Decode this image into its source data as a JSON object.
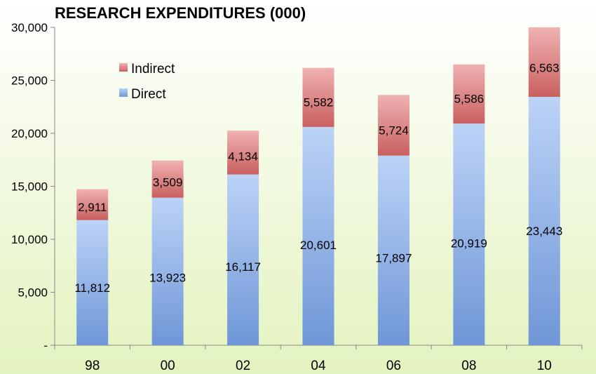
{
  "chart_data": {
    "type": "bar",
    "stacked": true,
    "title": "RESEARCH EXPENDITURES (000)",
    "xlabel": "",
    "ylabel": "",
    "categories": [
      "98",
      "00",
      "02",
      "04",
      "06",
      "08",
      "10"
    ],
    "series": [
      {
        "name": "Direct",
        "values": [
          11812,
          13923,
          16117,
          20601,
          17897,
          20919,
          23443
        ],
        "color_top": "#bcd3f7",
        "color_bottom": "#6f96d7"
      },
      {
        "name": "Indirect",
        "values": [
          2911,
          3509,
          4134,
          5582,
          5724,
          5586,
          6563
        ],
        "color_top": "#f0b2b2",
        "color_bottom": "#c96060"
      }
    ],
    "data_labels": {
      "Direct": [
        "11,812",
        "13,923",
        "16,117",
        "20,601",
        "17,897",
        "20,919",
        "23,443"
      ],
      "Indirect": [
        "2,911",
        "3,509",
        "4,134",
        "5,582",
        "5,724",
        "5,586",
        "6,563"
      ]
    },
    "ylim": [
      0,
      30000
    ],
    "yticks": [
      0,
      5000,
      10000,
      15000,
      20000,
      25000,
      30000
    ],
    "ytick_labels": [
      "-",
      "5,000",
      "10,000",
      "15,000",
      "20,000",
      "25,000",
      "30,000"
    ],
    "grid": false,
    "legend": {
      "position": "top-left",
      "entries": [
        "Indirect",
        "Direct"
      ]
    },
    "background": {
      "top": "#ffffff",
      "bottom": "#e3f3bf"
    }
  }
}
